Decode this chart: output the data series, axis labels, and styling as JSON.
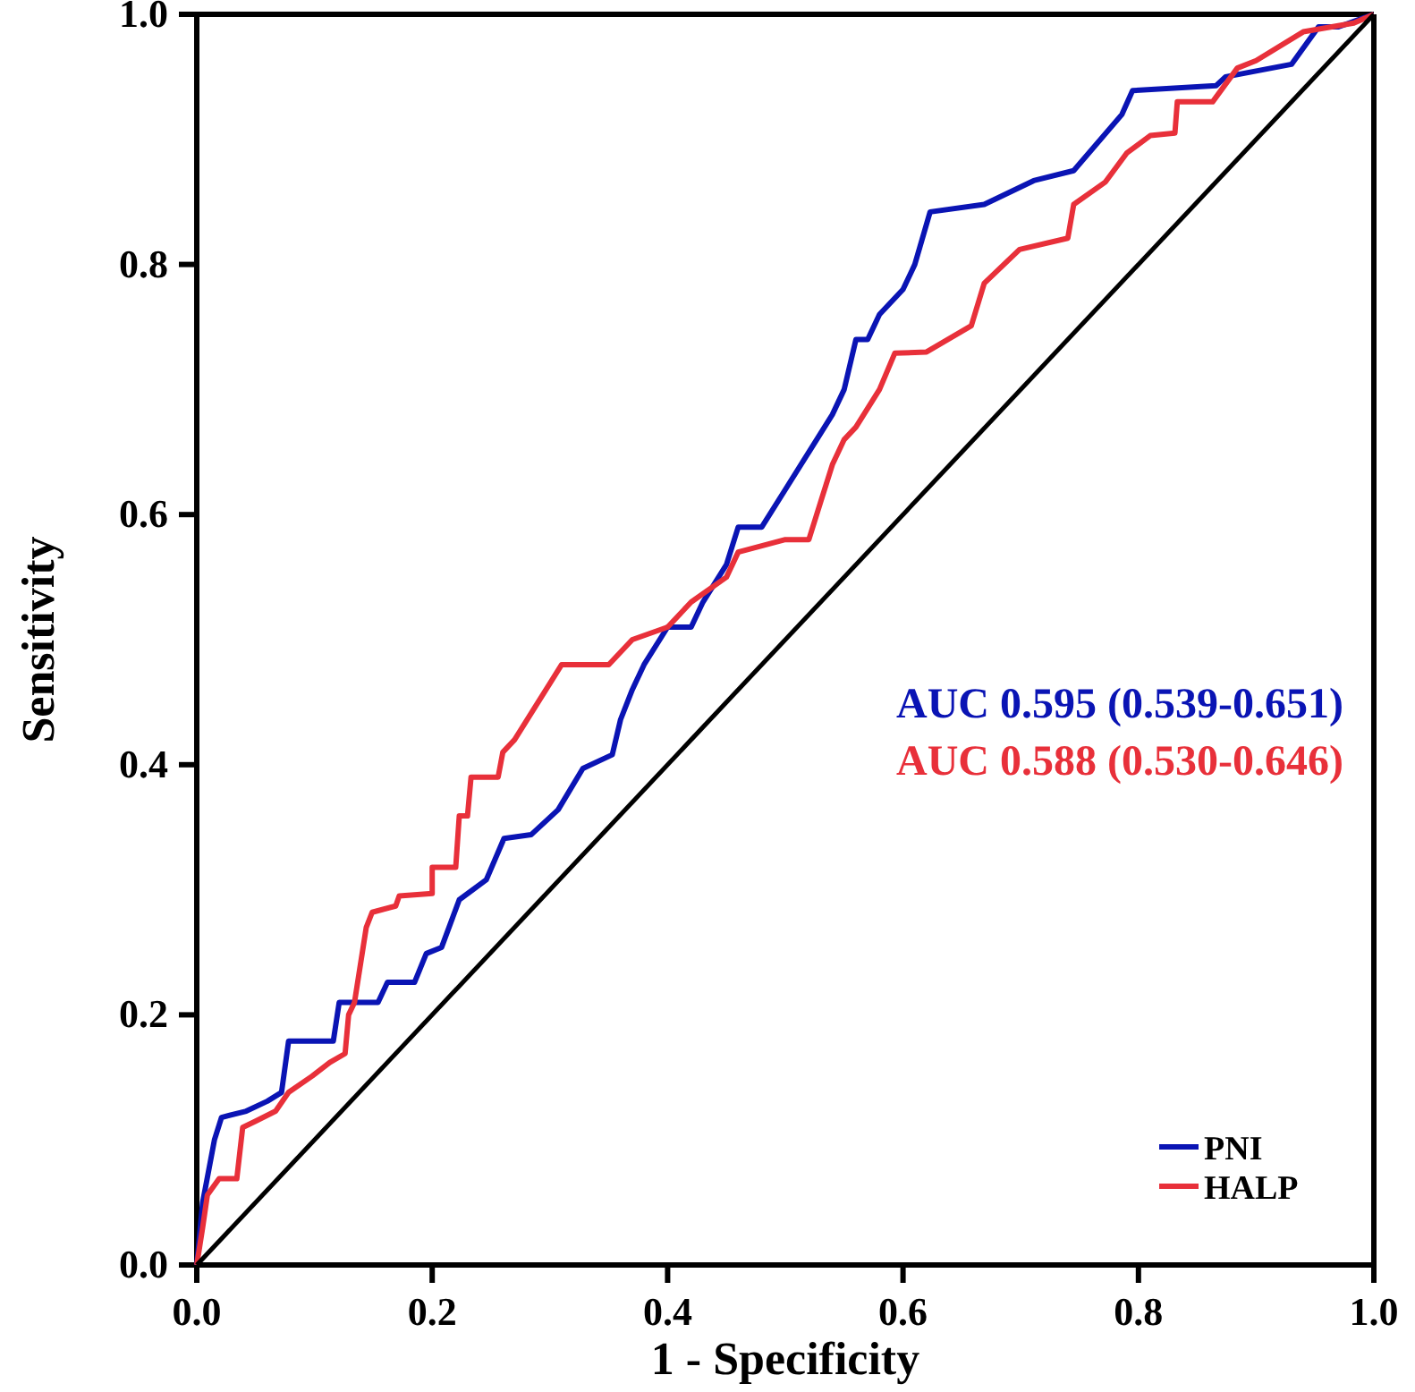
{
  "chart_data": {
    "type": "line",
    "xlabel": "1 - Specificity",
    "ylabel": "Sensitivity",
    "xlim": [
      0,
      1
    ],
    "ylim": [
      0,
      1
    ],
    "xticks": [
      {
        "value": 0,
        "label": "0.0"
      },
      0.2,
      0.4,
      0.6,
      0.8,
      {
        "value": 1,
        "label": "1.0"
      }
    ],
    "yticks": [
      {
        "value": 0,
        "label": "0.0"
      },
      0.2,
      0.4,
      0.6,
      0.8,
      {
        "value": 1,
        "label": "1.0"
      }
    ],
    "grid": false,
    "legend": "bottom right",
    "marker": "none",
    "line_style": "solid",
    "annotations": [
      "AUC 0.595 (0.539-0.651)",
      "AUC 0.588 (0.530-0.646)"
    ],
    "series": [
      {
        "name": "PNI",
        "color": "#0a14b4",
        "x": [
          0,
          0.005,
          0.015,
          0.021,
          0.042,
          0.06,
          0.072,
          0.078,
          0.116,
          0.121,
          0.154,
          0.162,
          0.185,
          0.195,
          0.208,
          0.223,
          0.246,
          0.261,
          0.284,
          0.307,
          0.328,
          0.353,
          0.36,
          0.37,
          0.38,
          0.4,
          0.42,
          0.43,
          0.45,
          0.46,
          0.48,
          0.5,
          0.52,
          0.54,
          0.55,
          0.56,
          0.57,
          0.58,
          0.6,
          0.61,
          0.623,
          0.669,
          0.711,
          0.745,
          0.786,
          0.795,
          0.866,
          0.874,
          0.93,
          0.953,
          0.97,
          1
        ],
        "values": [
          0,
          0.05,
          0.1,
          0.118,
          0.123,
          0.131,
          0.138,
          0.179,
          0.179,
          0.21,
          0.21,
          0.226,
          0.226,
          0.249,
          0.254,
          0.292,
          0.308,
          0.341,
          0.344,
          0.364,
          0.397,
          0.408,
          0.436,
          0.46,
          0.48,
          0.51,
          0.51,
          0.53,
          0.56,
          0.59,
          0.59,
          0.62,
          0.65,
          0.68,
          0.7,
          0.74,
          0.74,
          0.76,
          0.78,
          0.8,
          0.842,
          0.848,
          0.867,
          0.875,
          0.92,
          0.939,
          0.943,
          0.95,
          0.96,
          0.99,
          0.99,
          1
        ]
      },
      {
        "name": "HALP",
        "color": "#e8303a",
        "x": [
          0,
          0.005,
          0.009,
          0.019,
          0.034,
          0.039,
          0.05,
          0.067,
          0.078,
          0.098,
          0.113,
          0.126,
          0.129,
          0.134,
          0.144,
          0.149,
          0.169,
          0.172,
          0.2,
          0.2,
          0.22,
          0.223,
          0.23,
          0.233,
          0.256,
          0.26,
          0.27,
          0.29,
          0.31,
          0.35,
          0.37,
          0.4,
          0.42,
          0.45,
          0.46,
          0.5,
          0.52,
          0.53,
          0.54,
          0.55,
          0.56,
          0.58,
          0.593,
          0.62,
          0.658,
          0.669,
          0.699,
          0.74,
          0.745,
          0.772,
          0.79,
          0.81,
          0.831,
          0.833,
          0.863,
          0.884,
          0.9,
          0.94,
          0.983,
          1
        ],
        "values": [
          0,
          0.03,
          0.056,
          0.069,
          0.069,
          0.11,
          0.115,
          0.123,
          0.138,
          0.151,
          0.162,
          0.169,
          0.2,
          0.21,
          0.27,
          0.282,
          0.287,
          0.295,
          0.297,
          0.318,
          0.318,
          0.359,
          0.359,
          0.39,
          0.39,
          0.41,
          0.42,
          0.45,
          0.48,
          0.48,
          0.5,
          0.51,
          0.53,
          0.55,
          0.57,
          0.58,
          0.58,
          0.61,
          0.64,
          0.66,
          0.67,
          0.7,
          0.729,
          0.73,
          0.751,
          0.785,
          0.812,
          0.821,
          0.848,
          0.866,
          0.889,
          0.903,
          0.905,
          0.93,
          0.93,
          0.957,
          0.963,
          0.986,
          0.993,
          1
        ]
      },
      {
        "color": "#000000",
        "x": [
          0,
          1
        ],
        "values": [
          0,
          1
        ]
      }
    ]
  }
}
